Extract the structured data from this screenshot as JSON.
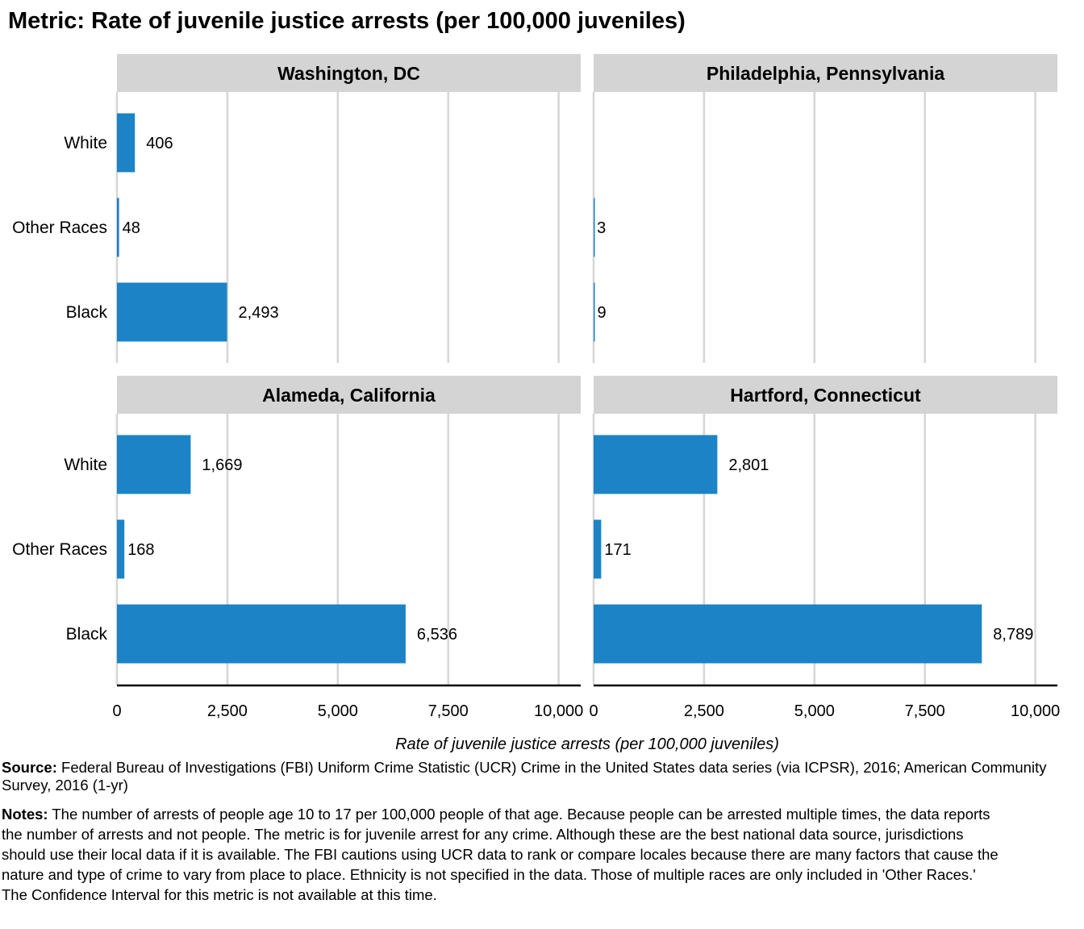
{
  "title": "Metric: Rate of juvenile justice arrests (per 100,000 juveniles)",
  "chart_data": {
    "type": "bar",
    "orientation": "horizontal",
    "xlabel": "Rate of juvenile justice arrests (per 100,000 juveniles)",
    "xlim": [
      0,
      10500
    ],
    "x_ticks": [
      0,
      2500,
      5000,
      7500,
      10000
    ],
    "x_tick_labels": [
      "0",
      "2,500",
      "5,000",
      "7,500",
      "10,000"
    ],
    "categories": [
      "White",
      "Other Races",
      "Black"
    ],
    "bar_color": "#1b83c6",
    "grid": "vertical",
    "panels": [
      {
        "title": "Washington, DC",
        "values": [
          406,
          48,
          2493
        ],
        "value_labels": [
          "406",
          "48",
          "2,493"
        ]
      },
      {
        "title": "Philadelphia, Pennsylvania",
        "values": [
          null,
          3,
          9
        ],
        "value_labels": [
          "",
          "3",
          "9"
        ]
      },
      {
        "title": "Alameda, California",
        "values": [
          1669,
          168,
          6536
        ],
        "value_labels": [
          "1,669",
          "168",
          "6,536"
        ]
      },
      {
        "title": "Hartford, Connecticut",
        "values": [
          2801,
          171,
          8789
        ],
        "value_labels": [
          "2,801",
          "171",
          "8,789"
        ]
      }
    ]
  },
  "source": {
    "label": "Source:",
    "text": "Federal Bureau of Investigations (FBI) Uniform Crime Statistic (UCR) Crime in the United States data series (via ICPSR), 2016; American Community Survey, 2016 (1-yr)"
  },
  "notes": {
    "label": "Notes:",
    "text": "The number of arrests of people age 10 to 17 per 100,000 people of that age. Because people can be arrested multiple times, the data reports the number of arrests and not people. The metric is for juvenile arrest for any crime. Although these are the best national data source, jurisdictions should use their local data if it is available. The FBI cautions using UCR data to rank or compare locales because there are many factors that cause the nature and type of crime to vary from place to place. Ethnicity is not specified in the data. Those of multiple races are only included in 'Other Races.' The Confidence Interval for this metric is not available at this time."
  }
}
